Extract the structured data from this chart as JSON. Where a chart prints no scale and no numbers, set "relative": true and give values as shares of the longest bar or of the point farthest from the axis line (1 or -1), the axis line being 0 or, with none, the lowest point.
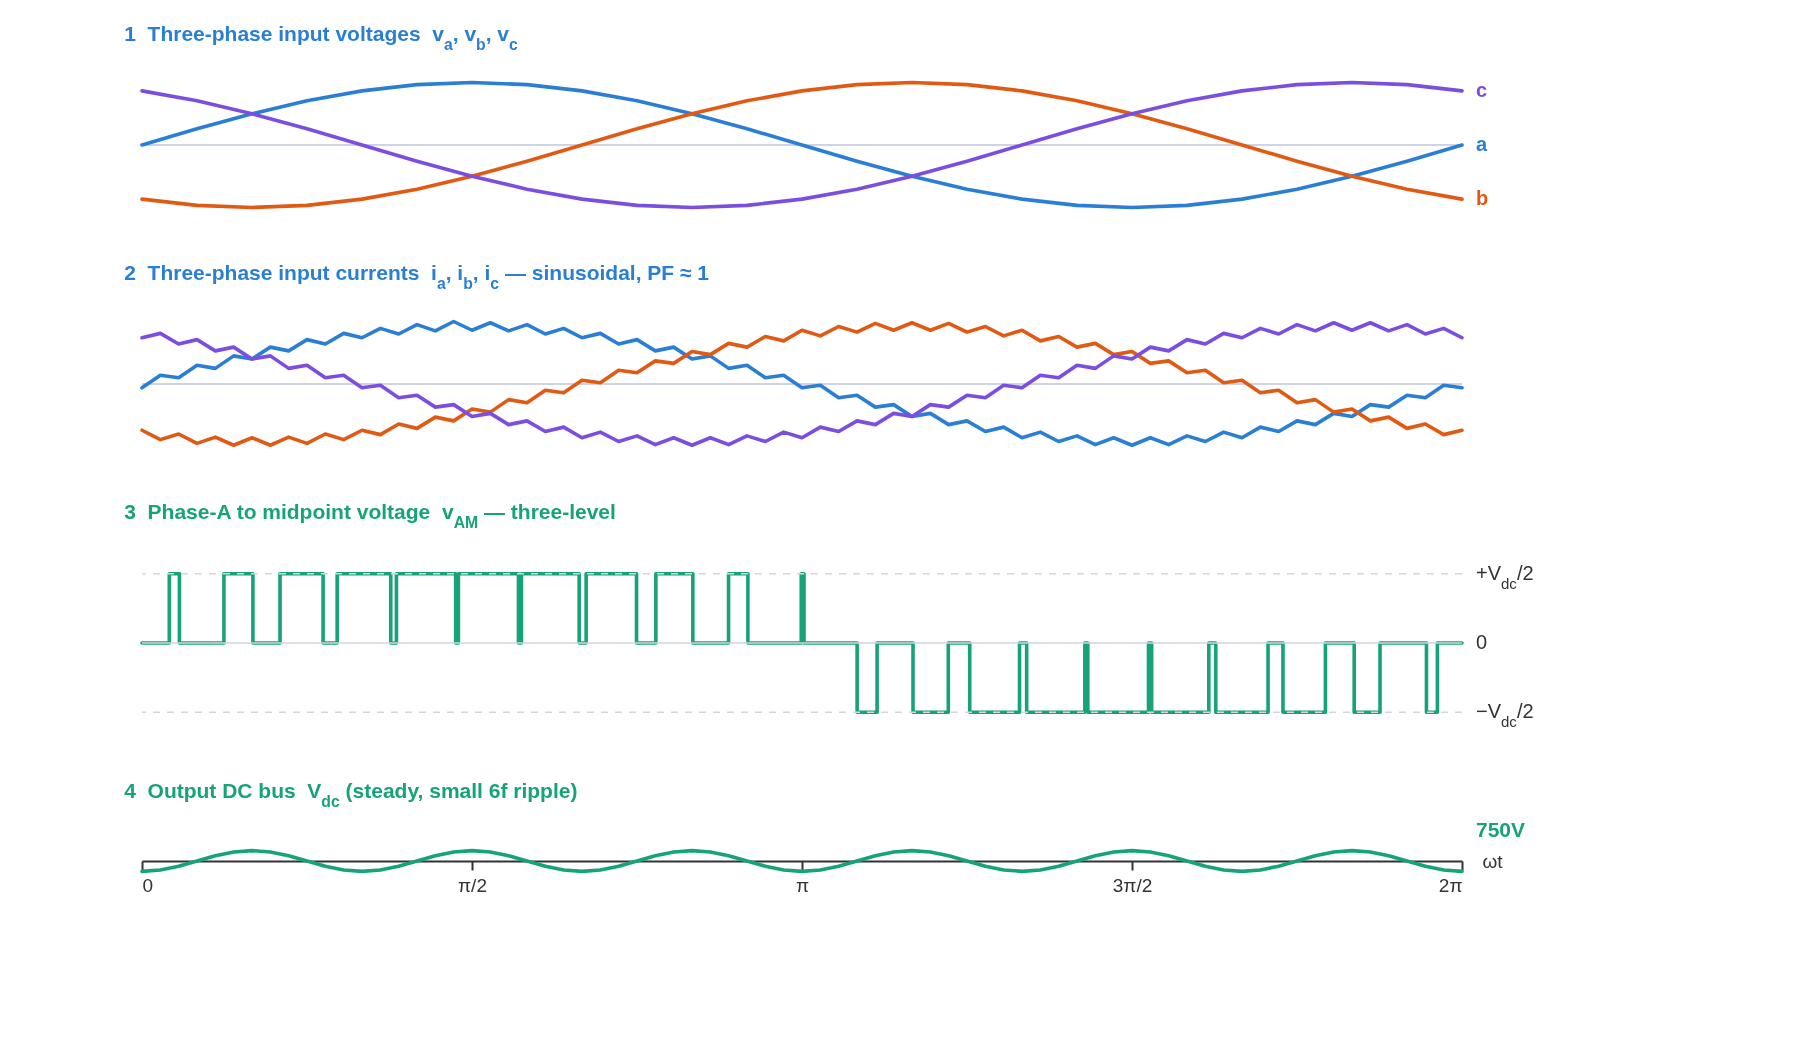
{
  "chart_data": [
    {
      "type": "line",
      "title": "1  Three-phase input voltages  v$_{a}$, v$_{b}$, v$_{c}$",
      "relative": true,
      "tick_labels": false,
      "xlim": [
        0,
        6.2832
      ],
      "x": [
        0,
        0.2618,
        0.5236,
        0.7854,
        1.0472,
        1.309,
        1.5708,
        1.8326,
        2.0944,
        2.3562,
        2.618,
        2.8798,
        3.1416,
        3.4034,
        3.6652,
        3.927,
        4.1888,
        4.4506,
        4.7124,
        4.9742,
        5.236,
        5.4978,
        5.7596,
        6.0214,
        6.2832
      ],
      "series": [
        {
          "name": "a",
          "color": "#2a7fd5",
          "values": [
            0,
            0.259,
            0.5,
            0.707,
            0.866,
            0.966,
            1,
            0.966,
            0.866,
            0.707,
            0.5,
            0.259,
            0,
            -0.259,
            -0.5,
            -0.707,
            -0.866,
            -0.966,
            -1,
            -0.966,
            -0.866,
            -0.707,
            -0.5,
            -0.259,
            0
          ]
        },
        {
          "name": "b",
          "color": "#e05a14",
          "values": [
            -0.866,
            -0.966,
            -1,
            -0.966,
            -0.866,
            -0.707,
            -0.5,
            -0.259,
            0,
            0.259,
            0.5,
            0.707,
            0.866,
            0.966,
            1,
            0.966,
            0.866,
            0.707,
            0.5,
            0.259,
            0,
            -0.259,
            -0.5,
            -0.707,
            -0.866
          ]
        },
        {
          "name": "c",
          "color": "#7b4ee0",
          "values": [
            0.866,
            0.707,
            0.5,
            0.259,
            0,
            -0.259,
            -0.5,
            -0.707,
            -0.866,
            -0.966,
            -1,
            -0.966,
            -0.866,
            -0.707,
            -0.5,
            -0.259,
            0,
            0.259,
            0.5,
            0.707,
            0.866,
            0.966,
            1,
            0.966,
            0.866
          ]
        }
      ]
    },
    {
      "type": "line",
      "title": "2  Three-phase input currents  i$_{a}$, i$_{b}$, i$_{c}$ — sinusoidal, PF ≈ 1",
      "relative": true,
      "tick_labels": false,
      "xlim": [
        0,
        6.2832
      ],
      "x": [
        0,
        0.0873,
        0.1745,
        0.2618,
        0.3491,
        0.4363,
        0.5236,
        0.6109,
        0.6981,
        0.7854,
        0.8727,
        0.9599,
        1.0472,
        1.1345,
        1.2217,
        1.309,
        1.3963,
        1.4835,
        1.5708,
        1.6581,
        1.7453,
        1.8326,
        1.9199,
        2.0071,
        2.0944,
        2.1817,
        2.2689,
        2.3562,
        2.4435,
        2.5307,
        2.618,
        2.7053,
        2.7925,
        2.8798,
        2.9671,
        3.0543,
        3.1416,
        3.2289,
        3.3161,
        3.4034,
        3.4907,
        3.5779,
        3.6652,
        3.7525,
        3.8397,
        3.927,
        4.0143,
        4.1015,
        4.1888,
        4.2761,
        4.3633,
        4.4506,
        4.5379,
        4.6251,
        4.7124,
        4.7997,
        4.8869,
        4.9742,
        5.0615,
        5.1487,
        5.236,
        5.3233,
        5.4105,
        5.4978,
        5.5851,
        5.6723,
        5.7596,
        5.8469,
        5.9341,
        6.0214,
        6.1087,
        6.1959,
        6.2832
      ],
      "series": [
        {
          "color": "#2a7fd5",
          "values": [
            -0.06,
            0.14,
            0.1,
            0.3,
            0.25,
            0.45,
            0.4,
            0.59,
            0.53,
            0.71,
            0.64,
            0.81,
            0.74,
            0.89,
            0.8,
            0.95,
            0.85,
            1,
            0.86,
            0.98,
            0.85,
            0.95,
            0.8,
            0.89,
            0.74,
            0.81,
            0.64,
            0.71,
            0.53,
            0.59,
            0.4,
            0.45,
            0.25,
            0.3,
            0.1,
            0.14,
            -0.06,
            -0.02,
            -0.22,
            -0.18,
            -0.37,
            -0.33,
            -0.52,
            -0.47,
            -0.65,
            -0.59,
            -0.76,
            -0.69,
            -0.86,
            -0.77,
            -0.92,
            -0.83,
            -0.97,
            -0.86,
            -0.98,
            -0.86,
            -0.97,
            -0.83,
            -0.92,
            -0.77,
            -0.86,
            -0.69,
            -0.76,
            -0.59,
            -0.65,
            -0.47,
            -0.52,
            -0.33,
            -0.37,
            -0.18,
            -0.22,
            -0.02,
            -0.06
          ]
        },
        {
          "color": "#e05a14",
          "values": [
            -0.74,
            -0.89,
            -0.8,
            -0.95,
            -0.85,
            -0.98,
            -0.86,
            -0.98,
            -0.85,
            -0.95,
            -0.8,
            -0.89,
            -0.74,
            -0.81,
            -0.64,
            -0.71,
            -0.53,
            -0.59,
            -0.4,
            -0.45,
            -0.25,
            -0.3,
            -0.1,
            -0.14,
            0.06,
            0.02,
            0.22,
            0.18,
            0.37,
            0.33,
            0.52,
            0.47,
            0.65,
            0.59,
            0.76,
            0.69,
            0.86,
            0.77,
            0.92,
            0.83,
            0.97,
            0.86,
            0.98,
            0.86,
            0.97,
            0.83,
            0.92,
            0.77,
            0.86,
            0.69,
            0.76,
            0.59,
            0.65,
            0.47,
            0.52,
            0.33,
            0.37,
            0.18,
            0.22,
            0.02,
            0.06,
            -0.14,
            -0.1,
            -0.3,
            -0.25,
            -0.45,
            -0.4,
            -0.59,
            -0.53,
            -0.71,
            -0.64,
            -0.81,
            -0.74
          ]
        },
        {
          "color": "#7b4ee0",
          "values": [
            0.74,
            0.81,
            0.64,
            0.71,
            0.53,
            0.59,
            0.4,
            0.45,
            0.25,
            0.3,
            0.1,
            0.14,
            -0.06,
            -0.02,
            -0.22,
            -0.18,
            -0.37,
            -0.33,
            -0.52,
            -0.47,
            -0.65,
            -0.59,
            -0.76,
            -0.69,
            -0.86,
            -0.77,
            -0.92,
            -0.83,
            -0.97,
            -0.86,
            -0.98,
            -0.86,
            -0.97,
            -0.83,
            -0.92,
            -0.77,
            -0.86,
            -0.69,
            -0.76,
            -0.59,
            -0.65,
            -0.47,
            -0.52,
            -0.33,
            -0.37,
            -0.18,
            -0.22,
            -0.02,
            -0.06,
            0.14,
            0.1,
            0.3,
            0.25,
            0.45,
            0.4,
            0.59,
            0.53,
            0.71,
            0.64,
            0.81,
            0.74,
            0.89,
            0.8,
            0.95,
            0.85,
            0.98,
            0.86,
            0.98,
            0.85,
            0.95,
            0.8,
            0.89,
            0.74
          ]
        }
      ]
    },
    {
      "type": "step",
      "title": "3  Phase-A to midpoint voltage  v$_{AM}$ — three-level",
      "relative": true,
      "tick_labels": false,
      "xlim": [
        0,
        6.2832
      ],
      "ref_lines": [
        {
          "axis": "y",
          "value": 1,
          "label": "+V$_{dc}$/2",
          "color": "#d6d6dc",
          "line_style": "dashed"
        },
        {
          "axis": "y",
          "value": 0,
          "label": "0",
          "color": "#cfd4e4",
          "line_style": "solid"
        },
        {
          "axis": "y",
          "value": -1,
          "label": "−V$_{dc}$/2",
          "color": "#d6d6dc",
          "line_style": "dashed"
        }
      ],
      "x": [
        0,
        0.13,
        0.178,
        0.39,
        0.528,
        0.657,
        0.862,
        0.929,
        1.184,
        1.211,
        1.493,
        1.506,
        1.792,
        1.806,
        2.081,
        2.114,
        2.354,
        2.446,
        2.622,
        2.792,
        2.884,
        3.138,
        3.151,
        3.404,
        3.499,
        3.67,
        3.838,
        3.94,
        4.177,
        4.211,
        4.488,
        4.502,
        4.791,
        4.806,
        5.078,
        5.111,
        5.36,
        5.431,
        5.633,
        5.77,
        5.893,
        6.114,
        6.166,
        6.2832
      ],
      "series": [
        {
          "color": "#16a37a",
          "values": [
            0,
            1,
            0,
            1,
            0,
            1,
            0,
            1,
            0,
            1,
            0,
            1,
            0,
            1,
            0,
            1,
            0,
            1,
            0,
            1,
            0,
            1,
            0,
            -1,
            0,
            -1,
            0,
            -1,
            0,
            -1,
            0,
            -1,
            0,
            -1,
            0,
            -1,
            0,
            -1,
            0,
            -1,
            0,
            -1,
            0,
            0
          ]
        }
      ]
    },
    {
      "type": "line",
      "title": "4  Output DC bus  V$_{dc}$ (steady, small 6f ripple)",
      "relative": true,
      "tick_labels": "x",
      "xlim": [
        0,
        6.2832
      ],
      "xlabel": "ωt",
      "annotations": [
        "750V"
      ],
      "xticks": [
        0,
        {
          "value": 1.5708,
          "label": "π/2"
        },
        {
          "value": 3.1416,
          "label": "π"
        },
        {
          "value": 4.7124,
          "label": "3π/2"
        },
        {
          "value": 6.2832,
          "label": "2π"
        }
      ],
      "x": [
        0,
        0.0873,
        0.1745,
        0.2618,
        0.3491,
        0.4363,
        0.5236,
        0.6109,
        0.6981,
        0.7854,
        0.8727,
        0.9599,
        1.0472,
        1.1345,
        1.2217,
        1.309,
        1.3963,
        1.4835,
        1.5708,
        1.6581,
        1.7453,
        1.8326,
        1.9199,
        2.0071,
        2.0944,
        2.1817,
        2.2689,
        2.3562,
        2.4435,
        2.5307,
        2.618,
        2.7053,
        2.7925,
        2.8798,
        2.9671,
        3.0543,
        3.1416,
        3.2289,
        3.3161,
        3.4034,
        3.4907,
        3.5779,
        3.6652,
        3.7525,
        3.8397,
        3.927,
        4.0143,
        4.1015,
        4.1888,
        4.2761,
        4.3633,
        4.4506,
        4.5379,
        4.6251,
        4.7124,
        4.7997,
        4.8869,
        4.9742,
        5.0615,
        5.1487,
        5.236,
        5.3233,
        5.4105,
        5.4978,
        5.5851,
        5.6723,
        5.7596,
        5.8469,
        5.9341,
        6.0214,
        6.1087,
        6.1959,
        6.2832
      ],
      "series": [
        {
          "color": "#16a37a",
          "values": [
            -1,
            -0.866,
            -0.5,
            0,
            0.5,
            0.866,
            1,
            0.866,
            0.5,
            0,
            -0.5,
            -0.866,
            -1,
            -0.866,
            -0.5,
            0,
            0.5,
            0.866,
            1,
            0.866,
            0.5,
            0,
            -0.5,
            -0.866,
            -1,
            -0.866,
            -0.5,
            0,
            0.5,
            0.866,
            1,
            0.866,
            0.5,
            0,
            -0.5,
            -0.866,
            -1,
            -0.866,
            -0.5,
            0,
            0.5,
            0.866,
            1,
            0.866,
            0.5,
            0,
            -0.5,
            -0.866,
            -1,
            -0.866,
            -0.5,
            0,
            0.5,
            0.866,
            1,
            0.866,
            0.5,
            0,
            -0.5,
            -0.866,
            -1,
            -0.866,
            -0.5,
            0,
            0.5,
            0.866,
            1,
            0.866,
            0.5,
            0,
            -0.5,
            -0.866,
            -1
          ]
        }
      ]
    }
  ]
}
